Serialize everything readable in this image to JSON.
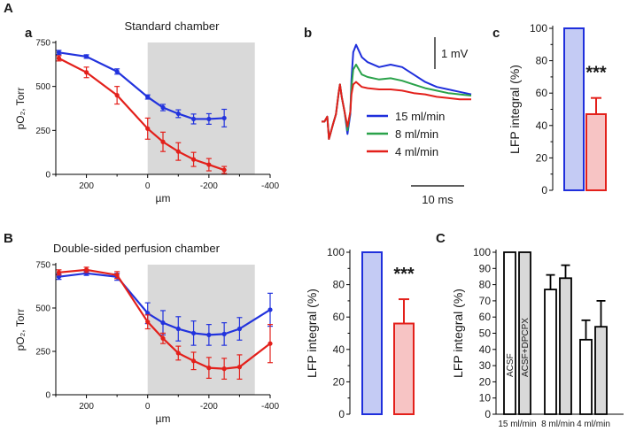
{
  "panel_labels": {
    "A": "A",
    "a": "a",
    "b": "b",
    "c": "c",
    "B": "B",
    "C": "C"
  },
  "chart_data": [
    {
      "id": "Aa",
      "type": "line",
      "title": "Standard chamber",
      "xlabel": "µm",
      "ylabel": "pO₂, Torr",
      "xlim": [
        300,
        -400
      ],
      "ylim": [
        0,
        750
      ],
      "xticks": [
        200,
        0,
        -200,
        -400
      ],
      "xtick_labels": [
        "200",
        "0",
        "-200",
        "-400"
      ],
      "yticks": [
        0,
        250,
        500,
        750
      ],
      "ytick_labels": [
        "0",
        "250",
        "500",
        "750"
      ],
      "shaded_x": [
        0,
        -350
      ],
      "shade_color": "#d9d9d9",
      "series": [
        {
          "name": "blue",
          "color": "#2233dd",
          "x": [
            290,
            200,
            100,
            0,
            -50,
            -100,
            -150,
            -200,
            -250
          ],
          "y": [
            693,
            670,
            585,
            440,
            380,
            345,
            315,
            315,
            320
          ],
          "err": [
            12,
            10,
            15,
            12,
            18,
            22,
            28,
            30,
            50
          ]
        },
        {
          "name": "red",
          "color": "#e3201b",
          "x": [
            290,
            200,
            100,
            0,
            -50,
            -100,
            -150,
            -200,
            -250
          ],
          "y": [
            660,
            580,
            450,
            260,
            185,
            130,
            85,
            55,
            25
          ],
          "err": [
            15,
            30,
            50,
            60,
            55,
            50,
            40,
            35,
            20
          ]
        }
      ]
    },
    {
      "id": "Ab",
      "type": "line",
      "title": "",
      "xlabel": "",
      "ylabel": "",
      "scale_bar_v": "1 mV",
      "scale_bar_h": "10 ms",
      "series": [
        {
          "name": "15 ml/min",
          "color": "#1f2fdc",
          "x": [
            0,
            0.5,
            1,
            1.3,
            2,
            2.5,
            3,
            3.2,
            3.5,
            4,
            4.5,
            5,
            5.2,
            5.5,
            6,
            7,
            8,
            10,
            12,
            14,
            16,
            18,
            20,
            22,
            24,
            26
          ],
          "y": [
            -0.8,
            -0.8,
            -0.6,
            -1.5,
            -0.9,
            -0.5,
            0.4,
            0.7,
            0.2,
            -0.4,
            -1.3,
            -0.5,
            0.9,
            2.0,
            2.3,
            1.8,
            1.6,
            1.4,
            1.5,
            1.4,
            1.1,
            0.8,
            0.6,
            0.5,
            0.4,
            0.3
          ]
        },
        {
          "name": "8 ml/min",
          "color": "#2aa24a",
          "x": [
            0,
            0.5,
            1,
            1.3,
            2,
            2.5,
            3,
            3.2,
            3.5,
            4,
            4.5,
            5,
            5.2,
            5.5,
            6,
            7,
            8,
            10,
            12,
            14,
            16,
            18,
            20,
            22,
            24,
            26
          ],
          "y": [
            -0.8,
            -0.8,
            -0.6,
            -1.5,
            -0.9,
            -0.5,
            0.4,
            0.7,
            0.2,
            -0.4,
            -1.15,
            -0.4,
            0.6,
            1.3,
            1.5,
            1.1,
            1.0,
            0.9,
            0.95,
            0.85,
            0.7,
            0.55,
            0.45,
            0.35,
            0.3,
            0.25
          ]
        },
        {
          "name": "4 ml/min",
          "color": "#e3201b",
          "x": [
            0,
            0.5,
            1,
            1.3,
            2,
            2.5,
            3,
            3.2,
            3.5,
            4,
            4.5,
            5,
            5.2,
            5.5,
            6,
            7,
            8,
            10,
            12,
            14,
            16,
            18,
            20,
            22,
            24,
            26
          ],
          "y": [
            -0.8,
            -0.8,
            -0.6,
            -1.5,
            -0.9,
            -0.5,
            0.4,
            0.7,
            0.2,
            -0.4,
            -1.0,
            -0.4,
            0.3,
            0.7,
            0.8,
            0.6,
            0.55,
            0.5,
            0.5,
            0.45,
            0.35,
            0.3,
            0.2,
            0.15,
            0.1,
            0.1
          ]
        }
      ]
    },
    {
      "id": "Ac",
      "type": "bar",
      "ylabel": "LFP integral (%)",
      "ylim": [
        0,
        100
      ],
      "yticks": [
        0,
        20,
        40,
        60,
        80,
        100
      ],
      "ytick_labels": [
        "0",
        "20",
        "40",
        "60",
        "80",
        "100"
      ],
      "significance": "***",
      "bars": [
        {
          "value": 100,
          "err": 0,
          "fill": "#c4cbf4",
          "stroke": "#1f2fdc"
        },
        {
          "value": 47,
          "err": 10,
          "fill": "#f7c4c4",
          "stroke": "#e3201b"
        }
      ]
    },
    {
      "id": "B",
      "type": "line",
      "title": "Double-sided perfusion chamber",
      "xlabel": "µm",
      "ylabel": "pO₂, Torr",
      "xlim": [
        300,
        -400
      ],
      "ylim": [
        0,
        750
      ],
      "xticks": [
        200,
        0,
        -200,
        -400
      ],
      "xtick_labels": [
        "200",
        "0",
        "-200",
        "-400"
      ],
      "yticks": [
        0,
        250,
        500,
        750
      ],
      "ytick_labels": [
        "0",
        "250",
        "500",
        "750"
      ],
      "shaded_x": [
        0,
        -350
      ],
      "shade_color": "#d9d9d9",
      "series": [
        {
          "name": "blue",
          "color": "#2233dd",
          "x": [
            290,
            200,
            100,
            0,
            -50,
            -100,
            -150,
            -200,
            -250,
            -300,
            -400
          ],
          "y": [
            680,
            700,
            680,
            470,
            415,
            380,
            355,
            345,
            350,
            380,
            490
          ],
          "err": [
            15,
            12,
            20,
            60,
            70,
            70,
            70,
            60,
            65,
            65,
            95
          ]
        },
        {
          "name": "red",
          "color": "#e3201b",
          "x": [
            290,
            200,
            100,
            0,
            -50,
            -100,
            -150,
            -200,
            -250,
            -300,
            -400
          ],
          "y": [
            705,
            720,
            690,
            420,
            325,
            240,
            195,
            155,
            150,
            160,
            295
          ],
          "err": [
            15,
            15,
            20,
            40,
            30,
            40,
            50,
            60,
            60,
            70,
            110
          ]
        }
      ]
    },
    {
      "id": "B2",
      "type": "bar",
      "ylabel": "LFP integral (%)",
      "ylim": [
        0,
        100
      ],
      "yticks": [
        0,
        20,
        40,
        60,
        80,
        100
      ],
      "ytick_labels": [
        "0",
        "20",
        "40",
        "60",
        "80",
        "100"
      ],
      "significance": "***",
      "bars": [
        {
          "value": 100,
          "err": 0,
          "fill": "#c4cbf4",
          "stroke": "#1f2fdc"
        },
        {
          "value": 56,
          "err": 15,
          "fill": "#f7c4c4",
          "stroke": "#e3201b"
        }
      ]
    },
    {
      "id": "C",
      "type": "bar",
      "ylabel": "LFP integral (%)",
      "ylim": [
        0,
        100
      ],
      "yticks": [
        0,
        10,
        20,
        30,
        40,
        50,
        60,
        70,
        80,
        90,
        100
      ],
      "ytick_labels": [
        "0",
        "10",
        "20",
        "30",
        "40",
        "50",
        "60",
        "70",
        "80",
        "90",
        "100"
      ],
      "categories": [
        "15 ml/min",
        "8 ml/min",
        "4 ml/min"
      ],
      "series": [
        {
          "name": "ACSF",
          "fill": "#ffffff",
          "values": [
            100,
            77,
            46
          ],
          "err": [
            0,
            9,
            12
          ]
        },
        {
          "name": "ACSF+DPCPX",
          "fill": "#d9d9d9",
          "values": [
            100,
            84,
            54
          ],
          "err": [
            0,
            8,
            16
          ]
        }
      ]
    }
  ]
}
